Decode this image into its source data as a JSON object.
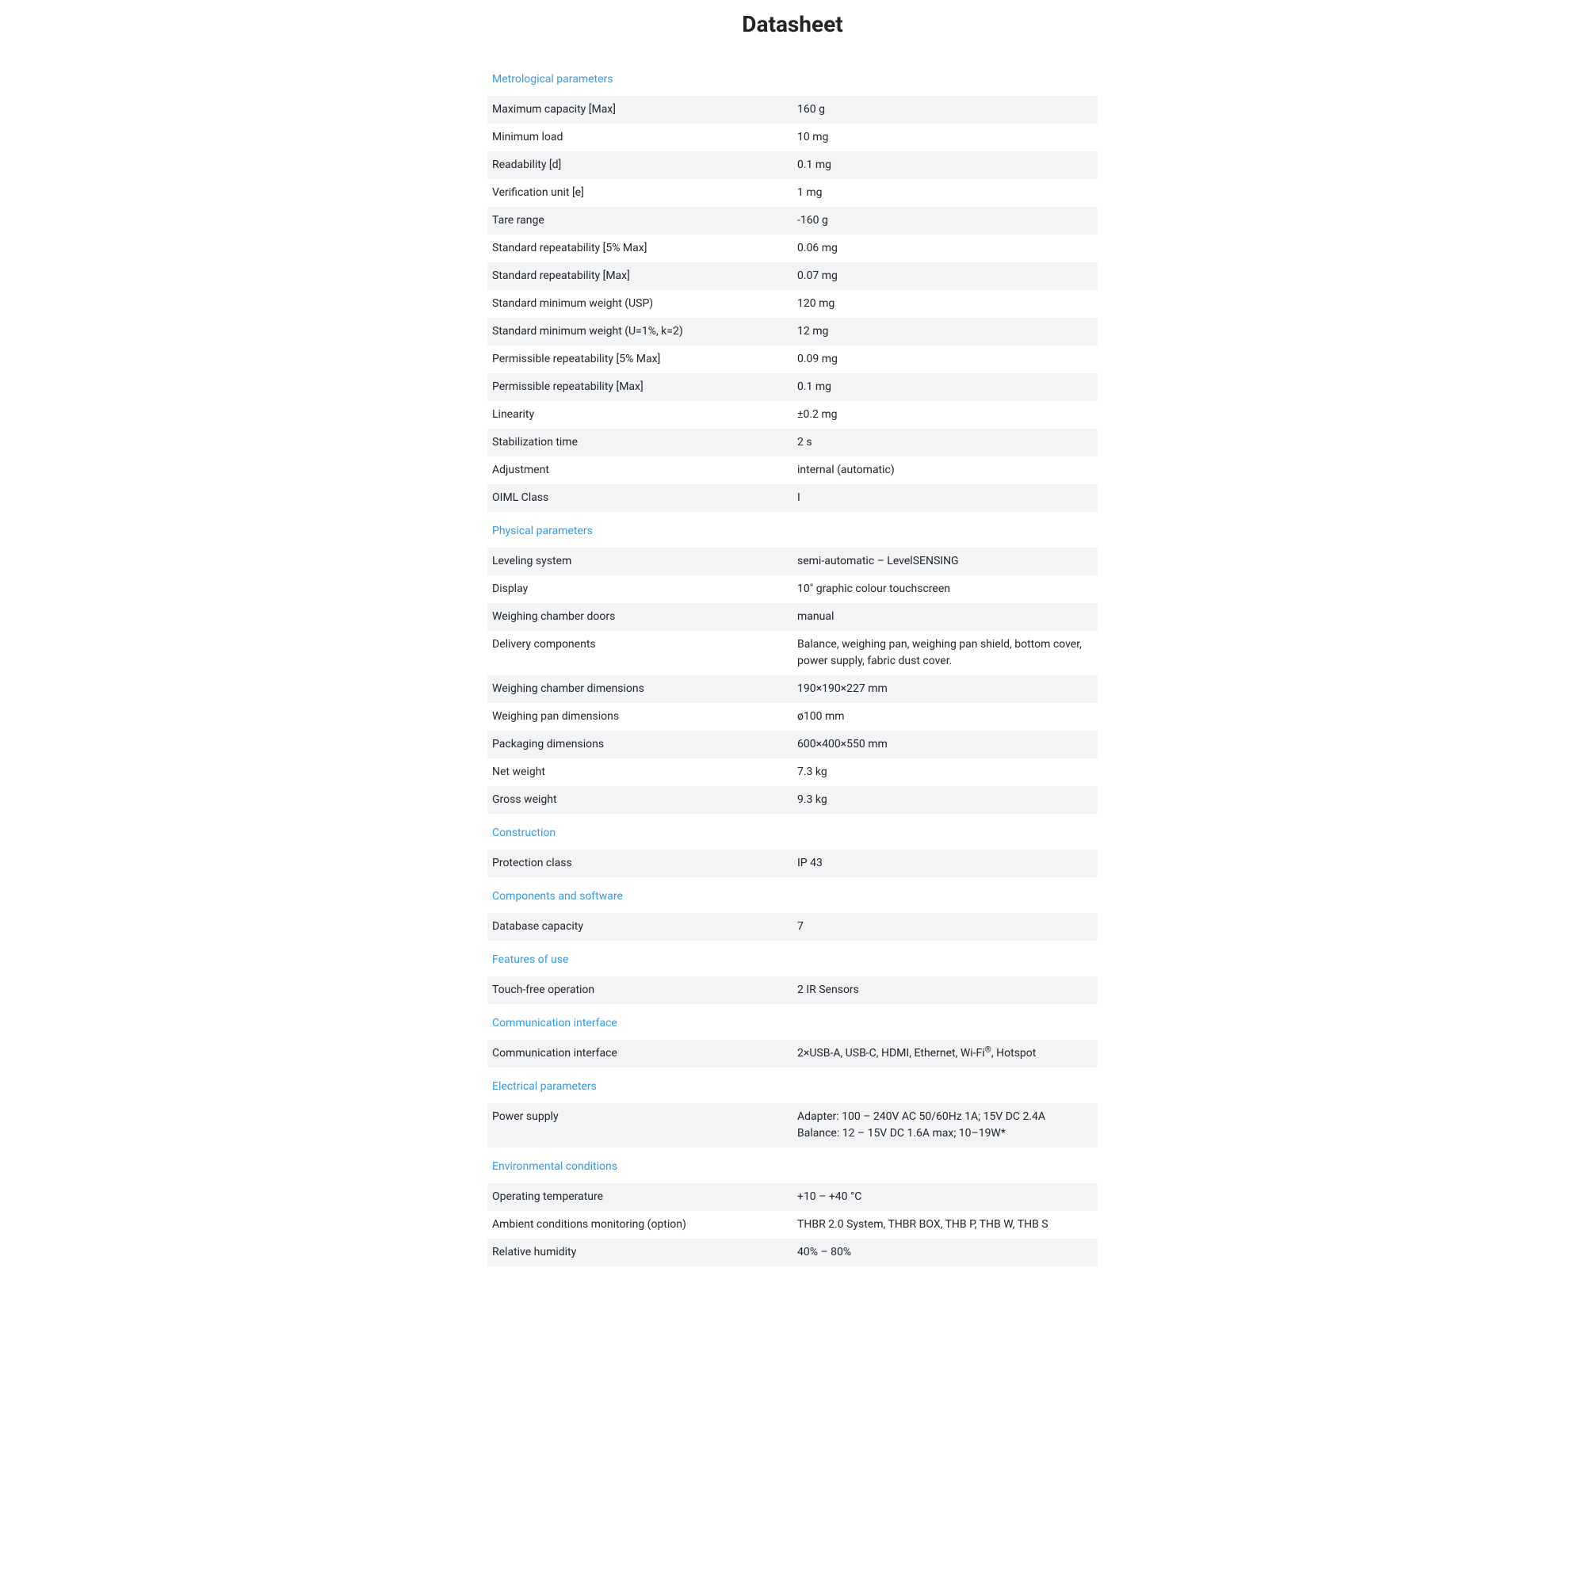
{
  "page_title": "Datasheet",
  "styling": {
    "title_fontsize": 28,
    "title_weight": 700,
    "section_title_color": "#3799e4",
    "section_title_fontsize": 14,
    "row_odd_bg": "#f3f4f5",
    "row_even_bg": "#ffffff",
    "text_color": "#212529",
    "body_fontsize": 14,
    "container_max_width": 790
  },
  "sections": [
    {
      "title": "Metrological parameters",
      "rows": [
        {
          "label": "Maximum capacity [Max]",
          "value": "160 g"
        },
        {
          "label": "Minimum load",
          "value": "10 mg"
        },
        {
          "label": "Readability [d]",
          "value": "0.1 mg"
        },
        {
          "label": "Verification unit [e]",
          "value": "1 mg"
        },
        {
          "label": "Tare range",
          "value": "-160 g"
        },
        {
          "label": "Standard repeatability [5% Max]",
          "value": "0.06 mg"
        },
        {
          "label": "Standard repeatability [Max]",
          "value": "0.07 mg"
        },
        {
          "label": "Standard minimum weight (USP)",
          "value": "120 mg"
        },
        {
          "label": "Standard minimum weight (U=1%, k=2)",
          "value": "12 mg"
        },
        {
          "label": "Permissible repeatability [5% Max]",
          "value": "0.09 mg"
        },
        {
          "label": "Permissible repeatability [Max]",
          "value": "0.1 mg"
        },
        {
          "label": "Linearity",
          "value": "±0.2 mg"
        },
        {
          "label": "Stabilization time",
          "value": "2 s"
        },
        {
          "label": "Adjustment",
          "value": "internal (automatic)"
        },
        {
          "label": "OIML Class",
          "value": "I"
        }
      ]
    },
    {
      "title": "Physical parameters",
      "rows": [
        {
          "label": "Leveling system",
          "value": "semi-automatic – LevelSENSING"
        },
        {
          "label": "Display",
          "value": "10\" graphic colour touchscreen"
        },
        {
          "label": "Weighing chamber doors",
          "value": "manual"
        },
        {
          "label": "Delivery components",
          "value": "Balance, weighing pan, weighing pan shield, bottom cover, power supply, fabric dust cover."
        },
        {
          "label": "Weighing chamber dimensions",
          "value": "190×190×227 mm"
        },
        {
          "label": "Weighing pan dimensions",
          "value": "ø100 mm"
        },
        {
          "label": "Packaging dimensions",
          "value": "600×400×550 mm"
        },
        {
          "label": "Net weight",
          "value": "7.3 kg"
        },
        {
          "label": "Gross weight",
          "value": "9.3 kg"
        }
      ]
    },
    {
      "title": "Construction",
      "rows": [
        {
          "label": "Protection class",
          "value": "IP 43"
        }
      ]
    },
    {
      "title": "Components and software",
      "rows": [
        {
          "label": "Database capacity",
          "value": "7"
        }
      ]
    },
    {
      "title": "Features of use",
      "rows": [
        {
          "label": "Touch-free operation",
          "value": "2 IR Sensors"
        }
      ]
    },
    {
      "title": "Communication interface",
      "rows": [
        {
          "label": "Communication interface",
          "value_html": "2×USB-A, USB-C, HDMI, Ethernet, Wi-Fi<sup>®</sup>, Hotspot"
        }
      ]
    },
    {
      "title": "Electrical parameters",
      "rows": [
        {
          "label": "Power supply",
          "value_html": "Adapter: 100 – 240V AC 50/60Hz 1A; 15V DC 2.4A<br>Balance: 12 – 15V DC 1.6A max; 10–19W*"
        }
      ]
    },
    {
      "title": "Environmental conditions",
      "rows": [
        {
          "label": "Operating temperature",
          "value": "+10 – +40 °C"
        },
        {
          "label": "Ambient conditions monitoring (option)",
          "value": "THBR 2.0 System, THBR BOX, THB P, THB W, THB S"
        },
        {
          "label": "Relative humidity",
          "value": "40% – 80%"
        }
      ]
    }
  ]
}
